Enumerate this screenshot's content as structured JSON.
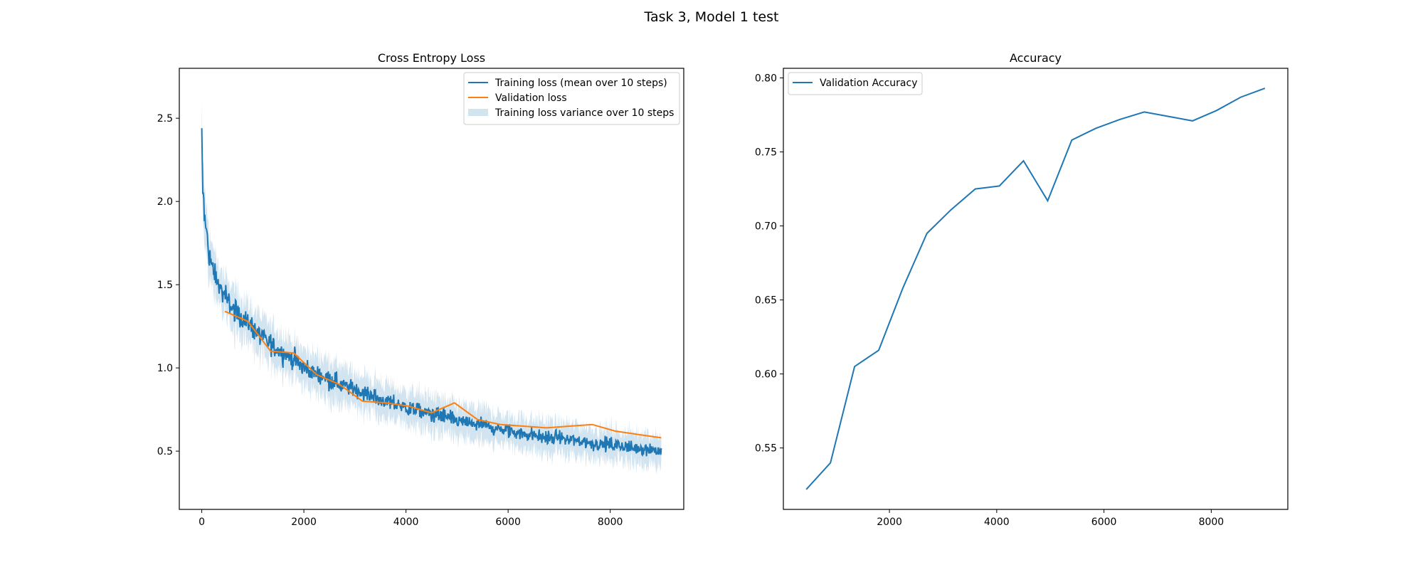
{
  "figure": {
    "title": "Task 3, Model 1 test"
  },
  "colors": {
    "train": "#1f77b4",
    "val": "#ff7f0e",
    "band": "#1f77b4",
    "axes": "#000000"
  },
  "chart_data": [
    {
      "type": "line",
      "title": "Cross Entropy Loss",
      "xlabel": "",
      "ylabel": "",
      "xlim": [
        -440,
        9440
      ],
      "ylim": [
        0.15,
        2.8
      ],
      "xticks": [
        0,
        2000,
        4000,
        6000,
        8000
      ],
      "yticks": [
        0.5,
        1.0,
        1.5,
        2.0,
        2.5
      ],
      "xtick_labels": [
        "0",
        "2000",
        "4000",
        "6000",
        "8000"
      ],
      "ytick_labels": [
        "0.5",
        "1.0",
        "1.5",
        "2.0",
        "2.5"
      ],
      "grid": false,
      "legend": {
        "placement": "top-right",
        "entries": [
          "Training loss (mean over 10 steps)",
          "Validation loss",
          "Training loss variance over 10 steps"
        ]
      },
      "series": [
        {
          "name": "Training loss (mean over 10 steps)",
          "x": [
            0,
            20,
            60,
            100,
            150,
            200,
            300,
            400,
            500,
            600,
            800,
            1000,
            1200,
            1400,
            1600,
            1800,
            2000,
            2200,
            2400,
            2600,
            2800,
            3000,
            3200,
            3400,
            3600,
            3800,
            4000,
            4200,
            4400,
            4600,
            4800,
            5000,
            5200,
            5400,
            5600,
            5800,
            6000,
            6200,
            6400,
            6600,
            6800,
            7000,
            7200,
            7400,
            7600,
            7800,
            8000,
            8200,
            8400,
            8600,
            8800,
            9000
          ],
          "y": [
            2.44,
            2.05,
            1.9,
            1.8,
            1.68,
            1.6,
            1.52,
            1.45,
            1.4,
            1.36,
            1.3,
            1.24,
            1.18,
            1.13,
            1.09,
            1.05,
            1.0,
            0.97,
            0.95,
            0.92,
            0.89,
            0.87,
            0.85,
            0.82,
            0.8,
            0.78,
            0.76,
            0.75,
            0.73,
            0.72,
            0.7,
            0.68,
            0.67,
            0.66,
            0.65,
            0.63,
            0.62,
            0.61,
            0.6,
            0.59,
            0.58,
            0.58,
            0.57,
            0.56,
            0.55,
            0.54,
            0.54,
            0.53,
            0.52,
            0.52,
            0.51,
            0.5
          ]
        },
        {
          "name": "Validation loss",
          "x": [
            450,
            900,
            1350,
            1800,
            2250,
            2700,
            3150,
            3600,
            4050,
            4500,
            4950,
            5400,
            5850,
            6300,
            6750,
            7200,
            7650,
            8100,
            8550,
            9000
          ],
          "y": [
            1.34,
            1.28,
            1.1,
            1.09,
            0.96,
            0.9,
            0.8,
            0.79,
            0.77,
            0.73,
            0.79,
            0.69,
            0.66,
            0.65,
            0.64,
            0.65,
            0.66,
            0.62,
            0.6,
            0.58
          ]
        }
      ]
    },
    {
      "type": "line",
      "title": "Accuracy",
      "xlabel": "",
      "ylabel": "",
      "xlim": [
        22.5,
        9427.5
      ],
      "ylim": [
        0.5085,
        0.8065
      ],
      "xticks": [
        2000,
        4000,
        6000,
        8000
      ],
      "yticks": [
        0.55,
        0.6,
        0.65,
        0.7,
        0.75,
        0.8
      ],
      "xtick_labels": [
        "2000",
        "4000",
        "6000",
        "8000"
      ],
      "ytick_labels": [
        "0.55",
        "0.60",
        "0.65",
        "0.70",
        "0.75",
        "0.80"
      ],
      "grid": false,
      "legend": {
        "placement": "top-left",
        "entries": [
          "Validation Accuracy"
        ]
      },
      "series": [
        {
          "name": "Validation Accuracy",
          "x": [
            450,
            900,
            1350,
            1800,
            2250,
            2700,
            3150,
            3600,
            4050,
            4500,
            4950,
            5400,
            5850,
            6300,
            6750,
            7200,
            7650,
            8100,
            8550,
            9000
          ],
          "y": [
            0.522,
            0.54,
            0.605,
            0.616,
            0.658,
            0.695,
            0.711,
            0.725,
            0.727,
            0.744,
            0.717,
            0.758,
            0.766,
            0.772,
            0.777,
            0.774,
            0.771,
            0.778,
            0.787,
            0.793
          ]
        }
      ]
    }
  ]
}
